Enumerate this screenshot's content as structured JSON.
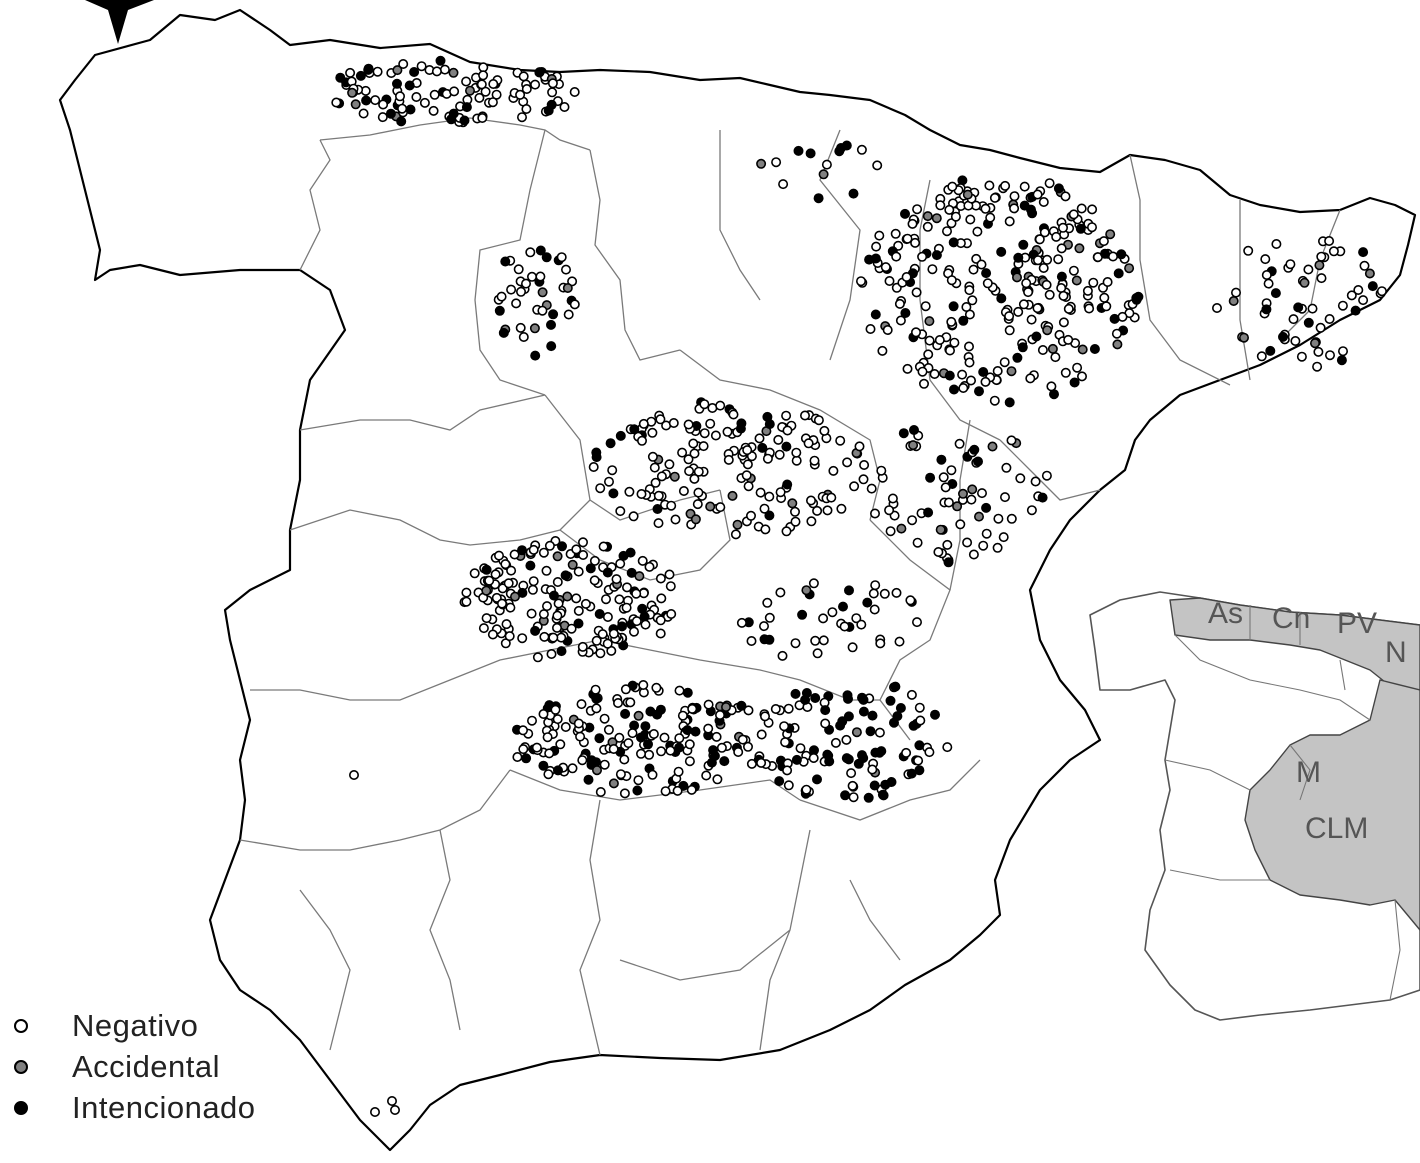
{
  "legend": {
    "items": [
      {
        "key": "negativo",
        "label": "Negativo",
        "fill": "#ffffff"
      },
      {
        "key": "accidental",
        "label": "Accidental",
        "fill": "#808080"
      },
      {
        "key": "intencionado",
        "label": "Intencionado",
        "fill": "#000000"
      }
    ]
  },
  "inset": {
    "labels": [
      "As",
      "Cn",
      "PV",
      "N",
      "M",
      "CLM"
    ],
    "highlight_color": "#c4c4c4"
  },
  "points": {
    "clusters": [
      {
        "name": "asturias-cantabria",
        "count": 110,
        "mix": [
          0.72,
          0.06,
          0.22
        ]
      },
      {
        "name": "castilla-leon-west",
        "count": 40,
        "mix": [
          0.6,
          0.1,
          0.3
        ]
      },
      {
        "name": "navarra",
        "count": 14,
        "mix": [
          0.5,
          0.1,
          0.4
        ]
      },
      {
        "name": "aragon-huesca-zaragoza",
        "count": 300,
        "mix": [
          0.72,
          0.1,
          0.18
        ]
      },
      {
        "name": "cataluna",
        "count": 60,
        "mix": [
          0.7,
          0.1,
          0.2
        ]
      },
      {
        "name": "madrid-guadalajara",
        "count": 170,
        "mix": [
          0.82,
          0.06,
          0.12
        ]
      },
      {
        "name": "toledo",
        "count": 190,
        "mix": [
          0.78,
          0.07,
          0.15
        ]
      },
      {
        "name": "cuenca",
        "count": 40,
        "mix": [
          0.7,
          0.05,
          0.25
        ]
      },
      {
        "name": "teruel",
        "count": 70,
        "mix": [
          0.75,
          0.12,
          0.13
        ]
      },
      {
        "name": "ciudad-real",
        "count": 180,
        "mix": [
          0.66,
          0.04,
          0.3
        ]
      },
      {
        "name": "albacete",
        "count": 110,
        "mix": [
          0.5,
          0.04,
          0.46
        ]
      }
    ]
  }
}
